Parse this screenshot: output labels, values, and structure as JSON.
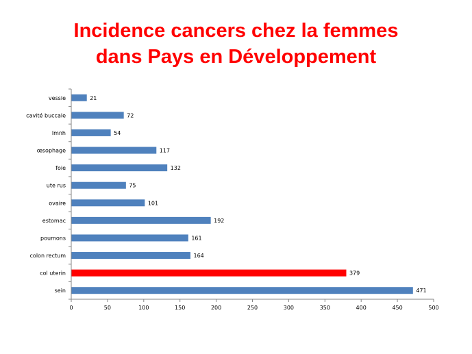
{
  "slide": {
    "title_line1": "Incidence cancers chez la femmes",
    "title_line2": "dans Pays en Développement"
  },
  "colors": {
    "title": "#ff0000",
    "bar_default": "#4f81bd",
    "bar_highlight": "#ff0000",
    "axis": "#868686"
  },
  "chart_data": {
    "type": "bar",
    "orientation": "horizontal",
    "categories": [
      "vessie",
      "cavité buccale",
      "lmnh",
      "œsophage",
      "foie",
      "ute rus",
      "ovaire",
      "estomac",
      "poumons",
      "colon rectum",
      "col uterin",
      "sein"
    ],
    "values": [
      21,
      72,
      54,
      117,
      132,
      75,
      101,
      192,
      161,
      164,
      379,
      471
    ],
    "highlight": [
      "col uterin"
    ],
    "xlim": [
      0,
      500
    ],
    "xticks": [
      0,
      50,
      100,
      150,
      200,
      250,
      300,
      350,
      400,
      450,
      500
    ],
    "grid": false,
    "legend": "none",
    "data_labels": true
  }
}
